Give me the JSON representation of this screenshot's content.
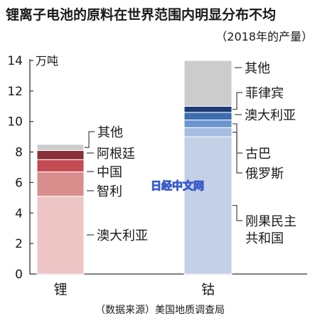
{
  "title": "锂离子电池的原料在世界范围内明显分布不均",
  "subtitle": "（2018年的产量）",
  "source": "（数据来源）美国地质调查局",
  "watermark": "日经中文网",
  "chart_data": {
    "type": "bar",
    "stacked": true,
    "unit": "万吨",
    "ylim": [
      0,
      14
    ],
    "yticks": [
      0,
      2,
      4,
      6,
      8,
      10,
      12,
      14
    ],
    "grid": false,
    "categories": [
      "锂",
      "钴"
    ],
    "stacks": [
      {
        "category": "锂",
        "segments": [
          {
            "name": "澳大利亚",
            "value": 5.1,
            "color": "#edc5c5"
          },
          {
            "name": "智利",
            "value": 1.6,
            "color": "#d98e8e"
          },
          {
            "name": "中国",
            "value": 0.8,
            "color": "#c44a52"
          },
          {
            "name": "阿根廷",
            "value": 0.6,
            "color": "#8a3038"
          },
          {
            "name": "其他",
            "value": 0.4,
            "color": "#cccccc"
          }
        ]
      },
      {
        "category": "钴",
        "segments": [
          {
            "name": "刚果民主共和国",
            "value": 9.0,
            "color": "#c3d0e6"
          },
          {
            "name": "俄罗斯",
            "value": 0.6,
            "color": "#a4bde0"
          },
          {
            "name": "古巴",
            "value": 0.5,
            "color": "#6a96d0"
          },
          {
            "name": "澳大利亚",
            "value": 0.5,
            "color": "#3e6db0"
          },
          {
            "name": "菲律宾",
            "value": 0.4,
            "color": "#1d3c78"
          },
          {
            "name": "其他",
            "value": 3.0,
            "color": "#cccccc"
          }
        ]
      }
    ]
  }
}
